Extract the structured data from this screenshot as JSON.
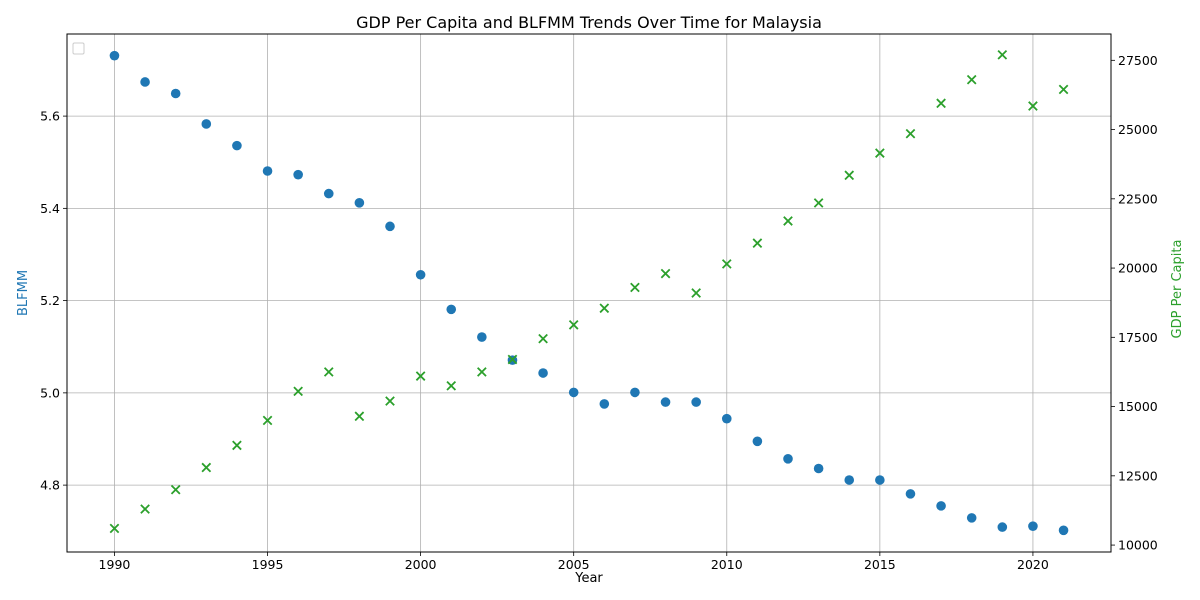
{
  "chart_data": {
    "type": "scatter",
    "title": "GDP Per Capita and BLFMM Trends Over Time for Malaysia",
    "xlabel": "Year",
    "ylabel_left": "BLFMM",
    "ylabel_right": "GDP Per Capita",
    "x": [
      1990,
      1991,
      1992,
      1993,
      1994,
      1995,
      1996,
      1997,
      1998,
      1999,
      2000,
      2001,
      2002,
      2003,
      2004,
      2005,
      2006,
      2007,
      2008,
      2009,
      2010,
      2011,
      2012,
      2013,
      2014,
      2015,
      2016,
      2017,
      2018,
      2019,
      2020,
      2021
    ],
    "series": [
      {
        "axis": "left",
        "marker": "circle",
        "color": "#1f77b4",
        "values": [
          5.731,
          5.674,
          5.649,
          5.583,
          5.536,
          5.481,
          5.473,
          5.432,
          5.412,
          5.361,
          5.256,
          5.181,
          5.121,
          5.071,
          5.043,
          5.001,
          4.976,
          5.001,
          4.98,
          4.98,
          4.944,
          4.895,
          4.857,
          4.836,
          4.811,
          4.811,
          4.781,
          4.755,
          4.729,
          4.709,
          4.711,
          4.702
        ]
      },
      {
        "axis": "right",
        "marker": "x",
        "color": "#2ca02c",
        "values": [
          10600,
          11300,
          12000,
          12800,
          13600,
          14500,
          15550,
          16250,
          14650,
          15200,
          16100,
          15750,
          16250,
          16700,
          17450,
          17950,
          18550,
          19300,
          19800,
          19100,
          20150,
          20900,
          21700,
          22350,
          23350,
          24150,
          24850,
          25950,
          26800,
          27700,
          25850,
          26450
        ]
      }
    ],
    "xlim": [
      1988.45,
      2022.55
    ],
    "ylim_left": [
      4.655,
      5.778
    ],
    "ylim_right": [
      9750,
      28450
    ],
    "xticks": [
      1990,
      1995,
      2000,
      2005,
      2010,
      2015,
      2020
    ],
    "yticks_left": [
      "4.8",
      "5.0",
      "5.2",
      "5.4",
      "5.6"
    ],
    "yticks_right": [
      "10000",
      "12500",
      "15000",
      "17500",
      "20000",
      "22500",
      "25000",
      "27500"
    ],
    "grid": true,
    "legend": "upper-left"
  }
}
